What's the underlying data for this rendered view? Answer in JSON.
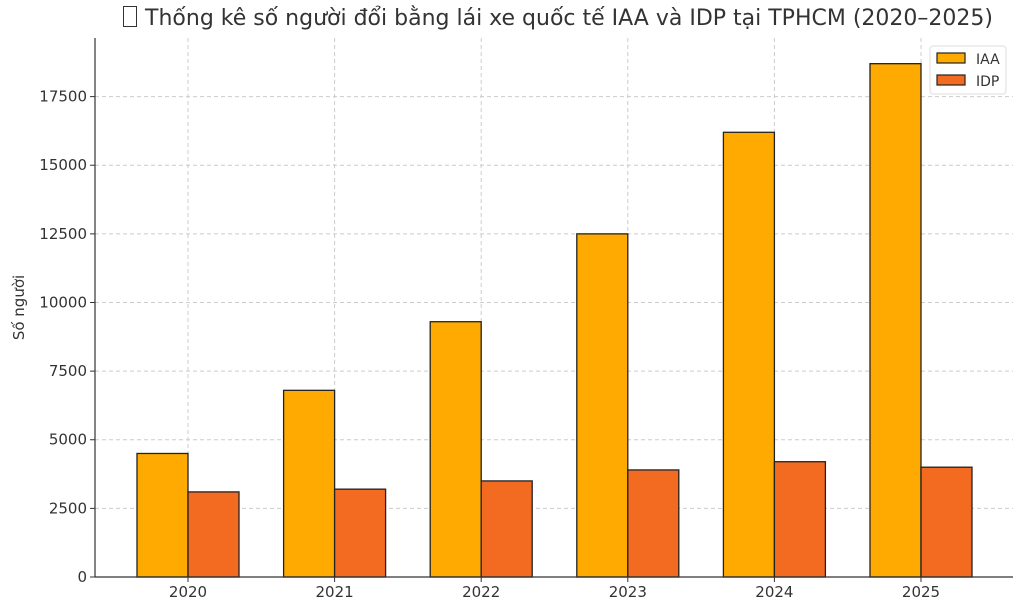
{
  "chart_data": {
    "type": "bar",
    "title": "Thống kê số người đổi bằng lái xe quốc tế IAA và IDP tại TPHCM (2020–2025)",
    "title_icon": "missing-glyph-box",
    "xlabel": "",
    "ylabel": "Số người",
    "categories": [
      "2020",
      "2021",
      "2022",
      "2023",
      "2024",
      "2025"
    ],
    "series": [
      {
        "name": "IAA",
        "color": "#FFAA00",
        "values": [
          4500,
          6800,
          9300,
          12500,
          16200,
          18700
        ]
      },
      {
        "name": "IDP",
        "color": "#F26B21",
        "values": [
          3100,
          3200,
          3500,
          3900,
          4200,
          4000
        ]
      }
    ],
    "yticks": [
      0,
      2500,
      5000,
      7500,
      10000,
      12500,
      15000,
      17500
    ],
    "ylim": [
      0,
      19635
    ],
    "grid": true,
    "legend": "top-right"
  }
}
